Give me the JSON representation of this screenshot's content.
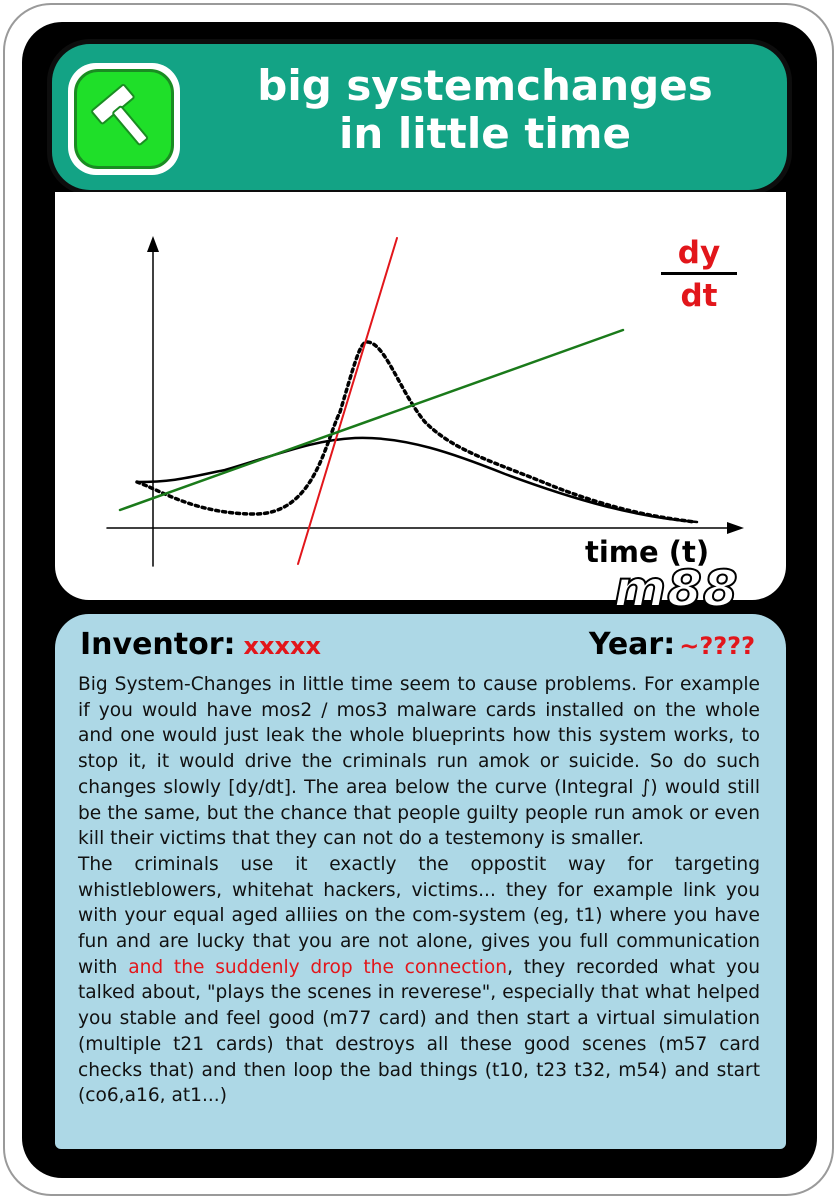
{
  "card": {
    "title_line1": "big systemchanges",
    "title_line2": "in little time",
    "icon": "hammer-icon",
    "colors": {
      "header": "#13a385",
      "icon_bg": "#1fdf29",
      "info_bg": "#add8e6",
      "accent_red": "#e2161b",
      "tangent_green": "#1a7a1a"
    }
  },
  "graph": {
    "dy": "dy",
    "dt": "dt",
    "x_label": "time (t)",
    "watermark": "m88"
  },
  "info": {
    "inventor_label": "Inventor:",
    "inventor_value": "xxxxx",
    "year_label": "Year:",
    "year_value": "~????",
    "paragraph1": "Big System-Changes in little time seem to cause problems. For example if you would have mos2 / mos3 malware cards installed on the whole and one would just leak the whole blueprints how this system works, to stop it, it would drive the criminals run amok or suicide. So do such changes slowly [dy/dt]. The area below the curve (Integral ∫) would still be the same, but the chance that people guilty people run amok or even kill their victims that they can not do a testemony is smaller.",
    "paragraph2_start": "The criminals use it exactly the oppostit way for targeting whistleblowers, whitehat hackers, victims... they for example link you with your equal aged alliies on the com-system (eg, t1) where you have fun and are lucky that you are not alone, gives you full communication with ",
    "paragraph2_red": "and the suddenly drop the connection",
    "paragraph2_end": ", they recorded what you talked about, \"plays the scenes in reverese\", especially that what helped you stable and feel good (m77 card) and then start a virtual simulation (multiple t21 cards) that destroys all these good scenes (m57 card checks that) and then loop the bad things (t10, t23 t32, m54) and start (co6,a16, at1...)"
  }
}
